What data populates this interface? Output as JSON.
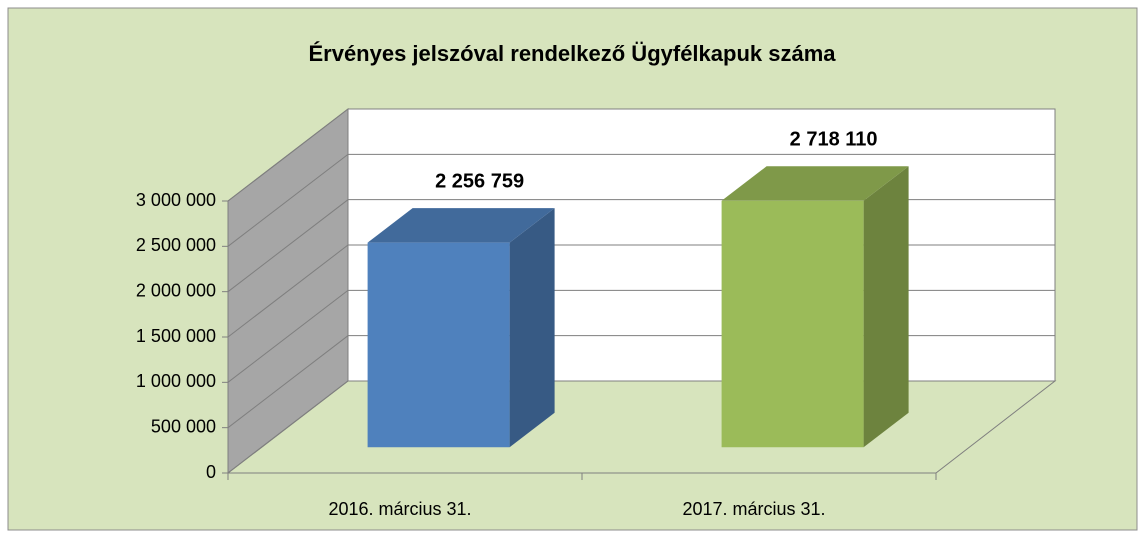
{
  "chart_data": {
    "type": "bar3d",
    "title": "Érvényes jelszóval rendelkező Ügyfélkapuk száma",
    "categories": [
      "2016. március 31.",
      "2017. március 31."
    ],
    "values": [
      2256759,
      2718110
    ],
    "value_labels": [
      "2 256 759",
      "2 718 110"
    ],
    "colors": [
      "#4f81bd",
      "#9bbb59"
    ],
    "ylim": [
      0,
      3000000
    ],
    "yticks": [
      0,
      {
        "value": 500000,
        "label": "500 000"
      },
      {
        "value": 1000000,
        "label": "1 000 000"
      },
      {
        "value": 1500000,
        "label": "1 500 000"
      },
      {
        "value": 2000000,
        "label": "2 000 000"
      },
      {
        "value": 2500000,
        "label": "2 500 000"
      },
      {
        "value": 3000000,
        "label": "3 000 000"
      }
    ],
    "grid": true
  }
}
